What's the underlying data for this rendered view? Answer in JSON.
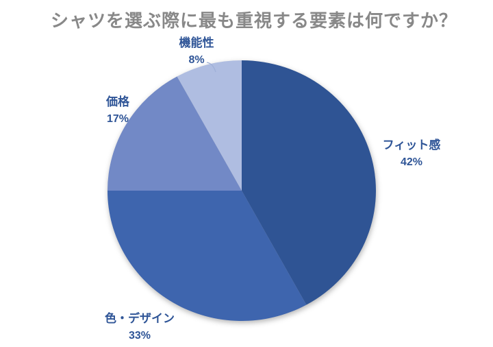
{
  "page": {
    "background": "#ffffff"
  },
  "chart_data": {
    "type": "pie",
    "title": "シャツを選ぶ際に最も重視する要素は何ですか？",
    "title_color": "#888888",
    "label_color": "#2F5597",
    "legend": "none",
    "labels_position": "outside-end",
    "start_angle_deg": 0,
    "direction": "clockwise",
    "slices": [
      {
        "key": "fit",
        "label": "フィット感",
        "value": 42,
        "pct": "42%",
        "color": "#2F5494"
      },
      {
        "key": "color-design",
        "label": "色・デザイン",
        "value": 33,
        "pct": "33%",
        "color": "#3E65AE"
      },
      {
        "key": "price",
        "label": "価格",
        "value": 17,
        "pct": "17%",
        "color": "#7289C6"
      },
      {
        "key": "function",
        "label": "機能性",
        "value": 8,
        "pct": "8%",
        "color": "#AFBDE1"
      }
    ]
  }
}
